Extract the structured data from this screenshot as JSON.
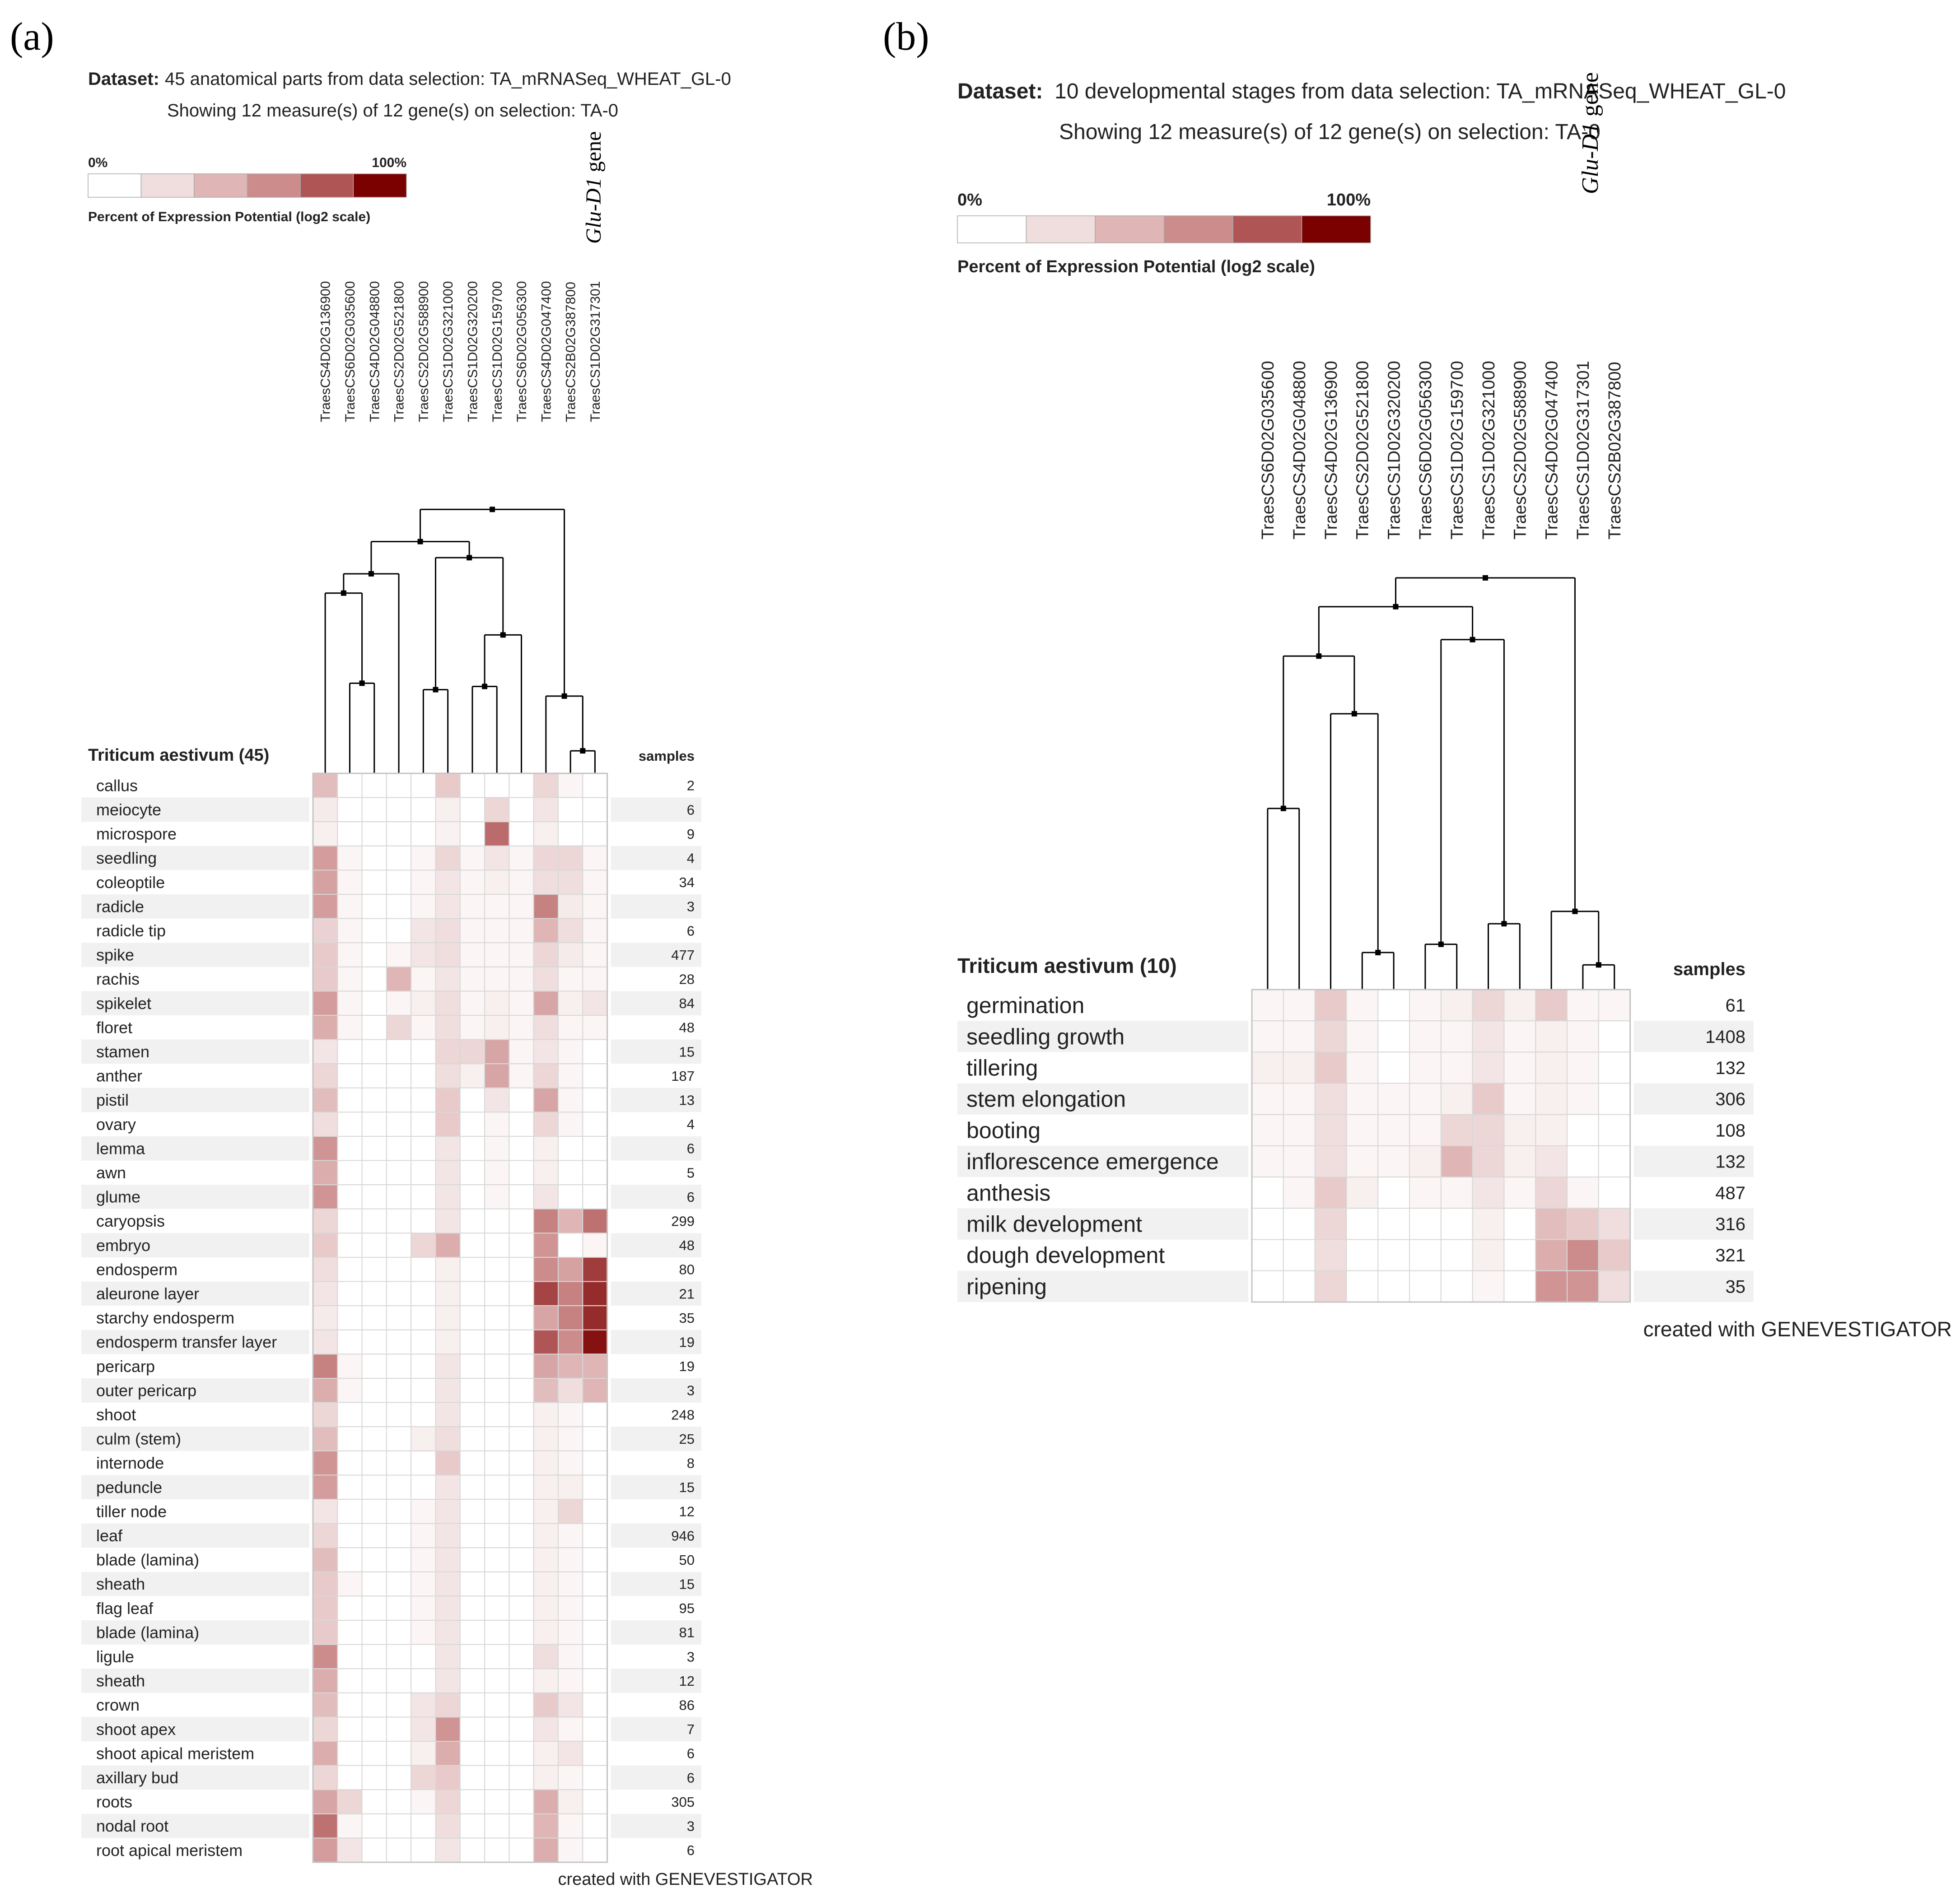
{
  "panels": [
    {
      "panel_label": "(a)",
      "dataset_label": "Dataset:",
      "dataset_text": "45 anatomical parts from data selection: TA_mRNASeq_WHEAT_GL-0",
      "showing_text": "Showing 12 measure(s) of 12 gene(s) on selection: TA-0",
      "legend": {
        "min_label": "0%",
        "max_label": "100%",
        "caption": "Percent of Expression Potential (log2 scale)"
      },
      "gene_annotation": {
        "italic": "Glu-D1",
        "plain": " gene"
      },
      "row_group_title": "Triticum aestivum (45)",
      "samples_header": "samples",
      "footer": "created with GENEVESTIGATOR",
      "chart_data": {
        "type": "heatmap",
        "value_scale": "level 0-5 (0 = white/0%, 5 = darkest/100% of expression potential, log2 scale)",
        "columns": [
          "TraesCS4D02G136900",
          "TraesCS6D02G035600",
          "TraesCS4D02G048800",
          "TraesCS2D02G521800",
          "TraesCS2D02G588900",
          "TraesCS1D02G321000",
          "TraesCS1D02G320200",
          "TraesCS1D02G159700",
          "TraesCS6D02G056300",
          "TraesCS4D02G047400",
          "TraesCS2B02G387800",
          "TraesCS1D02G317301"
        ],
        "rows": [
          "callus",
          "meiocyte",
          "microspore",
          "seedling",
          "coleoptile",
          "radicle",
          "radicle tip",
          "spike",
          "rachis",
          "spikelet",
          "floret",
          "stamen",
          "anther",
          "pistil",
          "ovary",
          "lemma",
          "awn",
          "glume",
          "caryopsis",
          "embryo",
          "endosperm",
          "aleurone layer",
          "starchy endosperm",
          "endosperm transfer layer",
          "pericarp",
          "outer pericarp",
          "shoot",
          "culm (stem)",
          "internode",
          "peduncle",
          "tiller node",
          "leaf",
          "blade (lamina)",
          "sheath",
          "flag leaf",
          "blade (lamina)",
          "ligule",
          "sheath",
          "crown",
          "shoot apex",
          "shoot apical meristem",
          "axillary bud",
          "roots",
          "nodal root",
          "root apical meristem"
        ],
        "samples": [
          "2",
          "6",
          "9",
          "4",
          "34",
          "3",
          "6",
          "477",
          "28",
          "84",
          "48",
          "15",
          "187",
          "13",
          "4",
          "6",
          "5",
          "6",
          "299",
          "48",
          "80",
          "21",
          "35",
          "19",
          "19",
          "3",
          "248",
          "25",
          "8",
          "15",
          "12",
          "946",
          "50",
          "15",
          "95",
          "81",
          "3",
          "12",
          "86",
          "7",
          "6",
          "6",
          "305",
          "3",
          "6"
        ],
        "values": [
          [
            1.8,
            0,
            0,
            0,
            0,
            1.5,
            0,
            0,
            0,
            1.2,
            0.3,
            0
          ],
          [
            0.6,
            0,
            0,
            0,
            0,
            0.5,
            0,
            1.2,
            0,
            0.8,
            0,
            0
          ],
          [
            0.5,
            0,
            0,
            0,
            0,
            0.4,
            0,
            3.6,
            0,
            0.5,
            0,
            0
          ],
          [
            2.6,
            0.3,
            0,
            0,
            0.3,
            1.2,
            0.3,
            0.8,
            0.3,
            1.2,
            1.2,
            0.3
          ],
          [
            2.5,
            0.3,
            0,
            0,
            0.3,
            0.8,
            0.3,
            0.5,
            0.3,
            1.0,
            1.0,
            0.3
          ],
          [
            2.6,
            0.3,
            0,
            0,
            0.3,
            0.8,
            0.3,
            0.3,
            0.3,
            3.2,
            0.6,
            0.3
          ],
          [
            1.3,
            0.3,
            0,
            0,
            0.8,
            1.0,
            0.3,
            0.3,
            0.3,
            2.0,
            1.0,
            0.3
          ],
          [
            1.5,
            0.3,
            0,
            0.3,
            0.8,
            1.0,
            0.3,
            0.3,
            0.3,
            1.2,
            0.6,
            0.3
          ],
          [
            1.5,
            0.3,
            0,
            2.0,
            0.3,
            0.8,
            0.3,
            0.3,
            0.3,
            1.0,
            0.3,
            0.3
          ],
          [
            2.6,
            0.3,
            0,
            0.3,
            0.5,
            1.0,
            0.3,
            0.5,
            0.3,
            2.4,
            0.5,
            0.8
          ],
          [
            2.2,
            0.3,
            0,
            1.2,
            0.3,
            1.0,
            0.3,
            0.5,
            0.3,
            1.0,
            0.3,
            0.3
          ],
          [
            0.8,
            0,
            0,
            0,
            0,
            1.2,
            1.2,
            2.4,
            0.3,
            0.8,
            0.3,
            0
          ],
          [
            1.2,
            0,
            0,
            0,
            0,
            1.0,
            0.5,
            2.4,
            0.3,
            1.2,
            0.3,
            0
          ],
          [
            1.8,
            0,
            0,
            0,
            0,
            1.5,
            0,
            0.8,
            0,
            2.4,
            0.3,
            0
          ],
          [
            1.0,
            0,
            0,
            0,
            0,
            1.5,
            0,
            0.3,
            0,
            1.2,
            0.3,
            0
          ],
          [
            2.8,
            0,
            0,
            0,
            0,
            0.8,
            0,
            0.3,
            0,
            0.5,
            0,
            0
          ],
          [
            2.2,
            0,
            0,
            0,
            0,
            0.8,
            0,
            0.3,
            0,
            0.5,
            0,
            0
          ],
          [
            2.8,
            0,
            0,
            0,
            0,
            0.8,
            0,
            0.3,
            0,
            0.8,
            0,
            0
          ],
          [
            1.2,
            0,
            0,
            0,
            0,
            0.8,
            0,
            0,
            0,
            3.2,
            2.0,
            3.5
          ],
          [
            1.5,
            0,
            0,
            0,
            1.2,
            2.2,
            0,
            0,
            0,
            2.8,
            0,
            0.3
          ],
          [
            1.0,
            0,
            0,
            0,
            0,
            0.5,
            0,
            0,
            0,
            3.0,
            2.5,
            4.3
          ],
          [
            0.8,
            0,
            0,
            0,
            0,
            0.5,
            0,
            0,
            0,
            4.2,
            3.2,
            4.5
          ],
          [
            0.6,
            0,
            0,
            0,
            0,
            0.5,
            0,
            0,
            0,
            2.4,
            3.2,
            4.5
          ],
          [
            0.8,
            0,
            0,
            0,
            0,
            0.5,
            0,
            0,
            0,
            4.0,
            3.0,
            4.8
          ],
          [
            3.2,
            0.3,
            0,
            0,
            0,
            0.8,
            0,
            0,
            0,
            2.4,
            2.0,
            2.0
          ],
          [
            2.2,
            0.3,
            0,
            0,
            0,
            0.8,
            0,
            0,
            0,
            1.8,
            1.0,
            2.0
          ],
          [
            1.2,
            0,
            0,
            0,
            0,
            0.8,
            0,
            0,
            0,
            0.5,
            0.3,
            0
          ],
          [
            1.8,
            0,
            0,
            0,
            0.5,
            1.0,
            0,
            0,
            0,
            0.5,
            0.3,
            0
          ],
          [
            2.8,
            0,
            0,
            0,
            0,
            1.5,
            0,
            0,
            0,
            0.5,
            0.3,
            0
          ],
          [
            2.6,
            0,
            0,
            0,
            0,
            0.8,
            0,
            0,
            0,
            0.5,
            0.5,
            0
          ],
          [
            0.8,
            0,
            0,
            0,
            0.3,
            0.8,
            0,
            0,
            0,
            0.5,
            1.2,
            0
          ],
          [
            1.2,
            0,
            0,
            0,
            0.3,
            0.8,
            0,
            0,
            0,
            0.5,
            0.3,
            0
          ],
          [
            1.8,
            0,
            0,
            0,
            0.3,
            0.8,
            0,
            0,
            0,
            0.5,
            0.3,
            0
          ],
          [
            1.5,
            0.3,
            0,
            0,
            0.3,
            0.8,
            0,
            0,
            0,
            0.5,
            0.3,
            0
          ],
          [
            1.5,
            0,
            0,
            0,
            0.3,
            0.8,
            0,
            0,
            0,
            0.5,
            0.3,
            0
          ],
          [
            1.5,
            0,
            0,
            0,
            0.3,
            0.8,
            0,
            0,
            0,
            0.5,
            0.3,
            0
          ],
          [
            3.0,
            0,
            0,
            0,
            0,
            0.8,
            0,
            0,
            0,
            1.0,
            0.3,
            0
          ],
          [
            2.2,
            0,
            0,
            0,
            0,
            0.8,
            0,
            0,
            0,
            0.5,
            0.3,
            0
          ],
          [
            1.8,
            0,
            0,
            0,
            0.8,
            1.2,
            0,
            0,
            0,
            1.5,
            0.8,
            0
          ],
          [
            1.2,
            0,
            0,
            0,
            0.8,
            2.8,
            0,
            0,
            0,
            0.8,
            0.3,
            0
          ],
          [
            2.2,
            0,
            0,
            0,
            0.5,
            2.2,
            0,
            0,
            0,
            0.5,
            0.8,
            0
          ],
          [
            1.2,
            0,
            0,
            0,
            1.2,
            1.5,
            0,
            0,
            0,
            0.5,
            0.3,
            0
          ],
          [
            2.4,
            1.2,
            0,
            0,
            0.3,
            1.2,
            0,
            0,
            0,
            2.2,
            0.5,
            0
          ],
          [
            3.5,
            0.3,
            0,
            0,
            0,
            1.0,
            0,
            0,
            0,
            2.0,
            0.3,
            0
          ],
          [
            2.6,
            0.8,
            0,
            0,
            0,
            0.8,
            0,
            0,
            0,
            2.2,
            0.3,
            0
          ]
        ]
      }
    },
    {
      "panel_label": "(b)",
      "dataset_label": "Dataset:",
      "dataset_text": "10 developmental stages from data selection: TA_mRNASeq_WHEAT_GL-0",
      "showing_text": "Showing 12 measure(s) of 12 gene(s) on selection: TA-0",
      "legend": {
        "min_label": "0%",
        "max_label": "100%",
        "caption": "Percent of Expression Potential (log2 scale)"
      },
      "gene_annotation": {
        "italic": "Glu-D1",
        "plain": " gene"
      },
      "row_group_title": "Triticum aestivum (10)",
      "samples_header": "samples",
      "footer": "created with GENEVESTIGATOR",
      "chart_data": {
        "type": "heatmap",
        "value_scale": "level 0-5 (0 = white/0%, 5 = darkest/100% of expression potential, log2 scale)",
        "columns": [
          "TraesCS6D02G035600",
          "TraesCS4D02G048800",
          "TraesCS4D02G136900",
          "TraesCS2D02G521800",
          "TraesCS1D02G320200",
          "TraesCS6D02G056300",
          "TraesCS1D02G159700",
          "TraesCS1D02G321000",
          "TraesCS2D02G588900",
          "TraesCS4D02G047400",
          "TraesCS1D02G317301",
          "TraesCS2B02G387800"
        ],
        "rows": [
          "germination",
          "seedling growth",
          "tillering",
          "stem elongation",
          "booting",
          "inflorescence emergence",
          "anthesis",
          "milk development",
          "dough development",
          "ripening"
        ],
        "samples": [
          "61",
          "1408",
          "132",
          "306",
          "108",
          "132",
          "487",
          "316",
          "321",
          "35"
        ],
        "values": [
          [
            0.3,
            0.3,
            1.5,
            0.3,
            0,
            0.3,
            0.5,
            1.2,
            0.5,
            1.5,
            0.3,
            0.3
          ],
          [
            0.3,
            0.3,
            1.2,
            0.3,
            0,
            0.3,
            0.3,
            0.8,
            0.3,
            0.5,
            0.3,
            0
          ],
          [
            0.5,
            0.5,
            1.5,
            0.3,
            0,
            0.3,
            0.3,
            0.8,
            0.3,
            0.5,
            0.3,
            0
          ],
          [
            0.3,
            0.3,
            1.0,
            0.3,
            0.3,
            0.3,
            0.5,
            1.5,
            0.3,
            0.5,
            0.3,
            0
          ],
          [
            0.3,
            0.3,
            1.0,
            0.3,
            0.3,
            0.3,
            1.2,
            1.2,
            0.5,
            0.5,
            0,
            0
          ],
          [
            0.3,
            0.3,
            1.0,
            0.3,
            0.3,
            0.5,
            2.0,
            1.2,
            0.5,
            0.8,
            0,
            0
          ],
          [
            0,
            0.3,
            1.5,
            0.5,
            0,
            0.3,
            0.3,
            0.8,
            0.3,
            1.2,
            0.3,
            0
          ],
          [
            0,
            0,
            1.2,
            0,
            0,
            0,
            0,
            0.5,
            0,
            1.8,
            1.5,
            1.0
          ],
          [
            0,
            0,
            1.0,
            0,
            0,
            0,
            0,
            0.5,
            0,
            2.2,
            3.0,
            1.5
          ],
          [
            0,
            0,
            1.2,
            0,
            0,
            0,
            0,
            0.3,
            0,
            2.8,
            2.8,
            1.0
          ]
        ]
      }
    }
  ],
  "colors": {
    "scale": [
      "#ffffff",
      "#f0dede",
      "#dfb5b5",
      "#cc8c8c",
      "#b05555",
      "#7b0000"
    ],
    "grid_line": "#d8d8d8",
    "stripe": "#f1f1f1",
    "text": "#222222",
    "dendrogram": "#000000"
  }
}
